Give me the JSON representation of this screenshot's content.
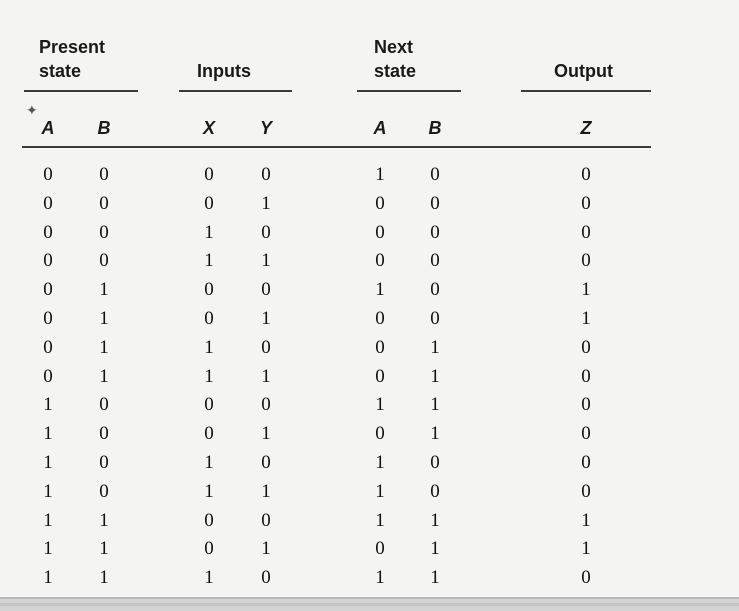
{
  "headers": {
    "present_state_line1": "Present",
    "present_state_line2": "state",
    "inputs": "Inputs",
    "next_state_line1": "Next",
    "next_state_line2": "state",
    "output": "Output"
  },
  "columns": [
    "A",
    "B",
    "X",
    "Y",
    "A",
    "B",
    "Z"
  ],
  "rows": [
    [
      "0",
      "0",
      "0",
      "0",
      "1",
      "0",
      "0"
    ],
    [
      "0",
      "0",
      "0",
      "1",
      "0",
      "0",
      "0"
    ],
    [
      "0",
      "0",
      "1",
      "0",
      "0",
      "0",
      "0"
    ],
    [
      "0",
      "0",
      "1",
      "1",
      "0",
      "0",
      "0"
    ],
    [
      "0",
      "1",
      "0",
      "0",
      "1",
      "0",
      "1"
    ],
    [
      "0",
      "1",
      "0",
      "1",
      "0",
      "0",
      "1"
    ],
    [
      "0",
      "1",
      "1",
      "0",
      "0",
      "1",
      "0"
    ],
    [
      "0",
      "1",
      "1",
      "1",
      "0",
      "1",
      "0"
    ],
    [
      "1",
      "0",
      "0",
      "0",
      "1",
      "1",
      "0"
    ],
    [
      "1",
      "0",
      "0",
      "1",
      "0",
      "1",
      "0"
    ],
    [
      "1",
      "0",
      "1",
      "0",
      "1",
      "0",
      "0"
    ],
    [
      "1",
      "0",
      "1",
      "1",
      "1",
      "0",
      "0"
    ],
    [
      "1",
      "1",
      "0",
      "0",
      "1",
      "1",
      "1"
    ],
    [
      "1",
      "1",
      "0",
      "1",
      "0",
      "1",
      "1"
    ],
    [
      "1",
      "1",
      "1",
      "0",
      "1",
      "1",
      "0"
    ]
  ]
}
